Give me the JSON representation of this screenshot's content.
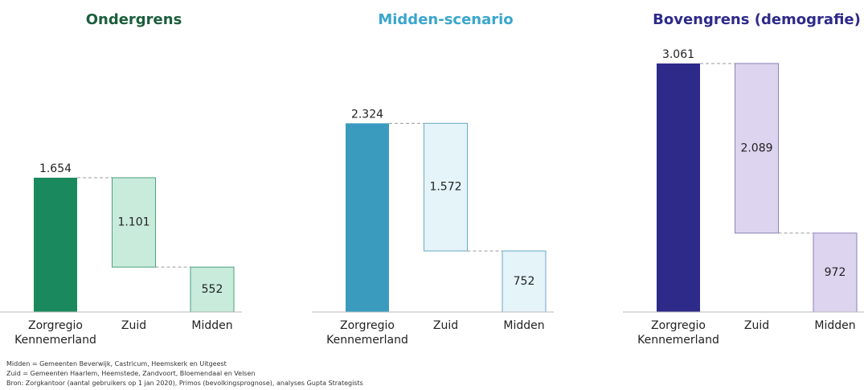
{
  "chart_data": [
    {
      "type": "waterfall",
      "title": "Ondergrens",
      "title_color": "#1b5e3c",
      "categories": [
        "Zorgregio Kennemerland",
        "Zuid",
        "Midden"
      ],
      "values": [
        1654,
        1101,
        552
      ],
      "value_labels": [
        "1.654",
        "1.101",
        "552"
      ],
      "total_color": "#1a8a5e",
      "part_color": "#c8ebdc",
      "part_border": "#4aa07a",
      "ylim": [
        0,
        3100
      ]
    },
    {
      "type": "waterfall",
      "title": "Midden-scenario",
      "title_color": "#3aa6cc",
      "categories": [
        "Zorgregio Kennemerland",
        "Zuid",
        "Midden"
      ],
      "values": [
        2324,
        1572,
        752
      ],
      "value_labels": [
        "2.324",
        "1.572",
        "752"
      ],
      "total_color": "#3a9bbf",
      "part_color": "#e4f4f9",
      "part_border": "#6aaac4",
      "ylim": [
        0,
        3100
      ]
    },
    {
      "type": "waterfall",
      "title": "Bovengrens (demografie)",
      "title_color": "#2e2a8a",
      "categories": [
        "Zorgregio Kennemerland",
        "Zuid",
        "Midden"
      ],
      "values": [
        3061,
        2089,
        972
      ],
      "value_labels": [
        "3.061",
        "2.089",
        "972"
      ],
      "total_color": "#2e2a8a",
      "part_color": "#ddd4ef",
      "part_border": "#8a80b8",
      "ylim": [
        0,
        3100
      ]
    }
  ],
  "notes": [
    "Midden = Gemeenten Beverwijk, Castricum, Heemskerk en Uitgeest",
    "Zuid = Gemeenten Haarlem, Heemstede, Zandvoort, Bloemendaal en Velsen",
    "Bron: Zorgkantoor (aantal gebruikers op 1 jan 2020), Primos (bevolkingsprognose), analyses Gupta Strategists"
  ]
}
